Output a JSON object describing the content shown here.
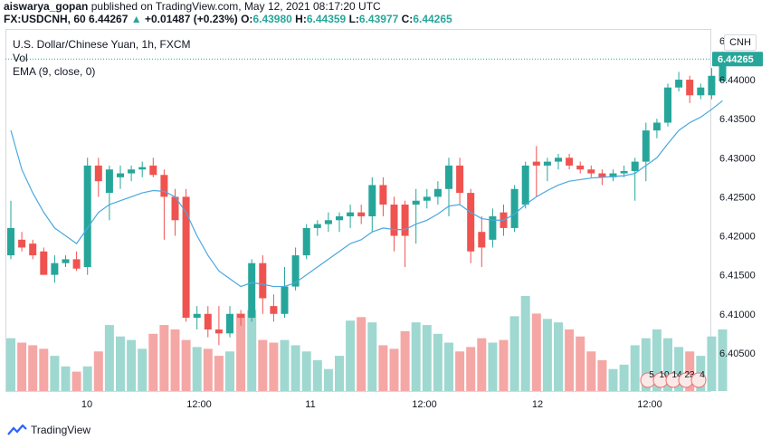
{
  "header": {
    "author": "aiswarya_gopan",
    "published_text": "published on TradingView.com, May 12, 2021 08:17:20 UTC",
    "symbol": "FX:USDCNH, 60",
    "last": "6.44267",
    "change_arrow": "▲",
    "change": "+0.01487 (+0.23%)",
    "o_label": "O:",
    "o_value": "6.43980",
    "h_label": "H:",
    "h_value": "6.44359",
    "l_label": "L:",
    "l_value": "6.43977",
    "c_label": "C:",
    "c_value": "6.44265"
  },
  "legend": {
    "title": "U.S. Dollar/Chinese Yuan, 1h, FXCM",
    "vol": "Vol",
    "ema": "EMA (9, close, 0)"
  },
  "currency_button": "CNH",
  "last_price_label": "6.44265",
  "branding": "TradingView",
  "event_badges": [
    "5",
    "10",
    "14",
    "23",
    "4"
  ],
  "colors": {
    "up": "#26a69a",
    "down": "#ef5350",
    "up_volume": "#9fd8d0",
    "down_volume": "#f4a7a5",
    "ema": "#4aa8e0",
    "last_price_bg": "#26a69a"
  },
  "chart_data": {
    "type": "candlestick",
    "title": "U.S. Dollar/Chinese Yuan, 1h, FXCM",
    "y_axis_ticks": [
      "6.44500",
      "6.44000",
      "6.43500",
      "6.43000",
      "6.42500",
      "6.42000",
      "6.41500",
      "6.41000",
      "6.40500"
    ],
    "ylim": [
      6.4,
      6.4465
    ],
    "x_axis_ticks": [
      "10",
      "12:00",
      "11",
      "12:00",
      "12",
      "12:00"
    ],
    "last_price": 6.44265,
    "candles": [
      {
        "o": 6.4175,
        "h": 6.4245,
        "l": 6.417,
        "c": 6.421
      },
      {
        "o": 6.4195,
        "h": 6.4205,
        "l": 6.418,
        "c": 6.4185
      },
      {
        "o": 6.419,
        "h": 6.4195,
        "l": 6.417,
        "c": 6.4175
      },
      {
        "o": 6.418,
        "h": 6.4185,
        "l": 6.415,
        "c": 6.415
      },
      {
        "o": 6.415,
        "h": 6.4175,
        "l": 6.414,
        "c": 6.4165
      },
      {
        "o": 6.4165,
        "h": 6.4175,
        "l": 6.416,
        "c": 6.417
      },
      {
        "o": 6.417,
        "h": 6.418,
        "l": 6.4155,
        "c": 6.4158
      },
      {
        "o": 6.416,
        "h": 6.43,
        "l": 6.415,
        "c": 6.429
      },
      {
        "o": 6.429,
        "h": 6.43,
        "l": 6.425,
        "c": 6.427
      },
      {
        "o": 6.4255,
        "h": 6.429,
        "l": 6.422,
        "c": 6.4285
      },
      {
        "o": 6.4275,
        "h": 6.429,
        "l": 6.426,
        "c": 6.428
      },
      {
        "o": 6.428,
        "h": 6.429,
        "l": 6.427,
        "c": 6.4285
      },
      {
        "o": 6.4285,
        "h": 6.4295,
        "l": 6.4275,
        "c": 6.4288
      },
      {
        "o": 6.429,
        "h": 6.43,
        "l": 6.4275,
        "c": 6.4278
      },
      {
        "o": 6.4278,
        "h": 6.4285,
        "l": 6.4195,
        "c": 6.425
      },
      {
        "o": 6.425,
        "h": 6.426,
        "l": 6.42,
        "c": 6.422
      },
      {
        "o": 6.425,
        "h": 6.426,
        "l": 6.409,
        "c": 6.4095
      },
      {
        "o": 6.4095,
        "h": 6.411,
        "l": 6.408,
        "c": 6.41
      },
      {
        "o": 6.41,
        "h": 6.411,
        "l": 6.407,
        "c": 6.408
      },
      {
        "o": 6.408,
        "h": 6.411,
        "l": 6.406,
        "c": 6.4075
      },
      {
        "o": 6.4075,
        "h": 6.411,
        "l": 6.407,
        "c": 6.41
      },
      {
        "o": 6.41,
        "h": 6.4105,
        "l": 6.4085,
        "c": 6.4095
      },
      {
        "o": 6.4095,
        "h": 6.417,
        "l": 6.409,
        "c": 6.4165
      },
      {
        "o": 6.4165,
        "h": 6.4175,
        "l": 6.41,
        "c": 6.412
      },
      {
        "o": 6.411,
        "h": 6.4125,
        "l": 6.409,
        "c": 6.41
      },
      {
        "o": 6.41,
        "h": 6.416,
        "l": 6.4095,
        "c": 6.4135
      },
      {
        "o": 6.4135,
        "h": 6.4185,
        "l": 6.413,
        "c": 6.4175
      },
      {
        "o": 6.4175,
        "h": 6.4215,
        "l": 6.417,
        "c": 6.421
      },
      {
        "o": 6.421,
        "h": 6.422,
        "l": 6.42,
        "c": 6.4215
      },
      {
        "o": 6.4215,
        "h": 6.423,
        "l": 6.4205,
        "c": 6.422
      },
      {
        "o": 6.422,
        "h": 6.423,
        "l": 6.4205,
        "c": 6.4225
      },
      {
        "o": 6.4225,
        "h": 6.424,
        "l": 6.421,
        "c": 6.423
      },
      {
        "o": 6.423,
        "h": 6.424,
        "l": 6.4215,
        "c": 6.4225
      },
      {
        "o": 6.4225,
        "h": 6.4275,
        "l": 6.4205,
        "c": 6.4265
      },
      {
        "o": 6.4265,
        "h": 6.4275,
        "l": 6.4225,
        "c": 6.424
      },
      {
        "o": 6.424,
        "h": 6.425,
        "l": 6.418,
        "c": 6.42
      },
      {
        "o": 6.424,
        "h": 6.4245,
        "l": 6.416,
        "c": 6.42
      },
      {
        "o": 6.424,
        "h": 6.426,
        "l": 6.419,
        "c": 6.4245
      },
      {
        "o": 6.4245,
        "h": 6.426,
        "l": 6.4235,
        "c": 6.425
      },
      {
        "o": 6.425,
        "h": 6.427,
        "l": 6.424,
        "c": 6.426
      },
      {
        "o": 6.426,
        "h": 6.43,
        "l": 6.4225,
        "c": 6.429
      },
      {
        "o": 6.429,
        "h": 6.43,
        "l": 6.424,
        "c": 6.4255
      },
      {
        "o": 6.4255,
        "h": 6.426,
        "l": 6.4165,
        "c": 6.418
      },
      {
        "o": 6.4205,
        "h": 6.4225,
        "l": 6.416,
        "c": 6.4185
      },
      {
        "o": 6.4195,
        "h": 6.4235,
        "l": 6.4185,
        "c": 6.4225
      },
      {
        "o": 6.423,
        "h": 6.424,
        "l": 6.42,
        "c": 6.421
      },
      {
        "o": 6.421,
        "h": 6.4265,
        "l": 6.4205,
        "c": 6.426
      },
      {
        "o": 6.424,
        "h": 6.4295,
        "l": 6.4235,
        "c": 6.429
      },
      {
        "o": 6.4295,
        "h": 6.4315,
        "l": 6.425,
        "c": 6.429
      },
      {
        "o": 6.429,
        "h": 6.43,
        "l": 6.427,
        "c": 6.4295
      },
      {
        "o": 6.4295,
        "h": 6.4305,
        "l": 6.4285,
        "c": 6.43
      },
      {
        "o": 6.43,
        "h": 6.4305,
        "l": 6.4285,
        "c": 6.429
      },
      {
        "o": 6.429,
        "h": 6.4295,
        "l": 6.428,
        "c": 6.4285
      },
      {
        "o": 6.4285,
        "h": 6.429,
        "l": 6.4275,
        "c": 6.428
      },
      {
        "o": 6.428,
        "h": 6.4285,
        "l": 6.4265,
        "c": 6.4275
      },
      {
        "o": 6.4275,
        "h": 6.4285,
        "l": 6.427,
        "c": 6.428
      },
      {
        "o": 6.428,
        "h": 6.429,
        "l": 6.4275,
        "c": 6.4283
      },
      {
        "o": 6.4283,
        "h": 6.43,
        "l": 6.4245,
        "c": 6.4295
      },
      {
        "o": 6.4295,
        "h": 6.4345,
        "l": 6.427,
        "c": 6.4335
      },
      {
        "o": 6.4335,
        "h": 6.435,
        "l": 6.4325,
        "c": 6.4345
      },
      {
        "o": 6.4345,
        "h": 6.4395,
        "l": 6.434,
        "c": 6.439
      },
      {
        "o": 6.439,
        "h": 6.441,
        "l": 6.4385,
        "c": 6.44
      },
      {
        "o": 6.44,
        "h": 6.4405,
        "l": 6.437,
        "c": 6.438
      },
      {
        "o": 6.438,
        "h": 6.4395,
        "l": 6.4375,
        "c": 6.439
      },
      {
        "o": 6.438,
        "h": 6.4415,
        "l": 6.4375,
        "c": 6.4405
      },
      {
        "o": 6.4398,
        "h": 6.4436,
        "l": 6.4398,
        "c": 6.4427
      }
    ],
    "volume": [
      60,
      55,
      52,
      48,
      40,
      28,
      22,
      28,
      45,
      75,
      62,
      58,
      48,
      65,
      75,
      70,
      58,
      50,
      48,
      40,
      45,
      88,
      92,
      58,
      55,
      58,
      52,
      45,
      35,
      25,
      40,
      80,
      84,
      78,
      52,
      48,
      68,
      78,
      75,
      65,
      55,
      45,
      50,
      60,
      55,
      58,
      85,
      108,
      88,
      82,
      78,
      70,
      62,
      45,
      35,
      25,
      30,
      52,
      60,
      70,
      60,
      50,
      45,
      40,
      62,
      70
    ],
    "ema": [
      6.4335,
      6.4285,
      6.4255,
      6.423,
      6.421,
      6.42,
      6.419,
      6.421,
      6.423,
      6.424,
      6.4245,
      6.425,
      6.4255,
      6.4258,
      6.4257,
      6.425,
      6.423,
      6.42,
      6.4175,
      6.4155,
      6.4145,
      6.4135,
      6.414,
      6.4138,
      6.4135,
      6.4135,
      6.414,
      6.415,
      6.416,
      6.417,
      6.418,
      6.419,
      6.4195,
      6.4205,
      6.421,
      6.4208,
      6.4208,
      6.4215,
      6.422,
      6.4228,
      6.4238,
      6.424,
      6.423,
      6.4222,
      6.422,
      6.422,
      6.4228,
      6.424,
      6.425,
      6.4258,
      6.4265,
      6.427,
      6.4272,
      6.4274,
      6.4275,
      6.4276,
      6.4277,
      6.428,
      6.429,
      6.43,
      6.4318,
      6.4335,
      6.4345,
      6.4352,
      6.4362,
      6.4373
    ]
  }
}
